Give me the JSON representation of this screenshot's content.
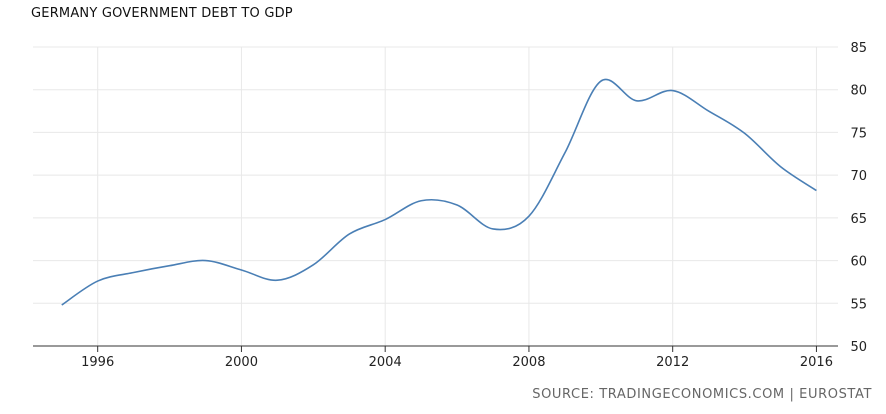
{
  "chart_data": {
    "type": "line",
    "title": "GERMANY GOVERNMENT DEBT TO GDP",
    "source": "SOURCE: TRADINGECONOMICS.COM | EUROSTAT",
    "xlabel": "",
    "ylabel": "",
    "xlim": [
      1994.2,
      2016.6
    ],
    "ylim": [
      50,
      85
    ],
    "x_ticks": [
      1996,
      2000,
      2004,
      2008,
      2012,
      2016
    ],
    "y_ticks": [
      50,
      55,
      60,
      65,
      70,
      75,
      80,
      85
    ],
    "grid": true,
    "legend": "none",
    "colors": {
      "line": "#4a7fb5",
      "grid": "#e8e8e8",
      "axis": "#333333"
    },
    "series": [
      {
        "x": [
          1995,
          1996,
          1997,
          1998,
          1999,
          2000,
          2001,
          2002,
          2003,
          2004,
          2005,
          2006,
          2007,
          2008,
          2009,
          2010,
          2011,
          2012,
          2013,
          2014,
          2015,
          2016
        ],
        "values": [
          54.8,
          57.6,
          58.6,
          59.4,
          60.0,
          58.9,
          57.7,
          59.5,
          63.1,
          64.8,
          67.0,
          66.5,
          63.7,
          65.2,
          72.6,
          81.0,
          78.7,
          79.9,
          77.5,
          74.9,
          71.0,
          68.2
        ]
      }
    ]
  }
}
